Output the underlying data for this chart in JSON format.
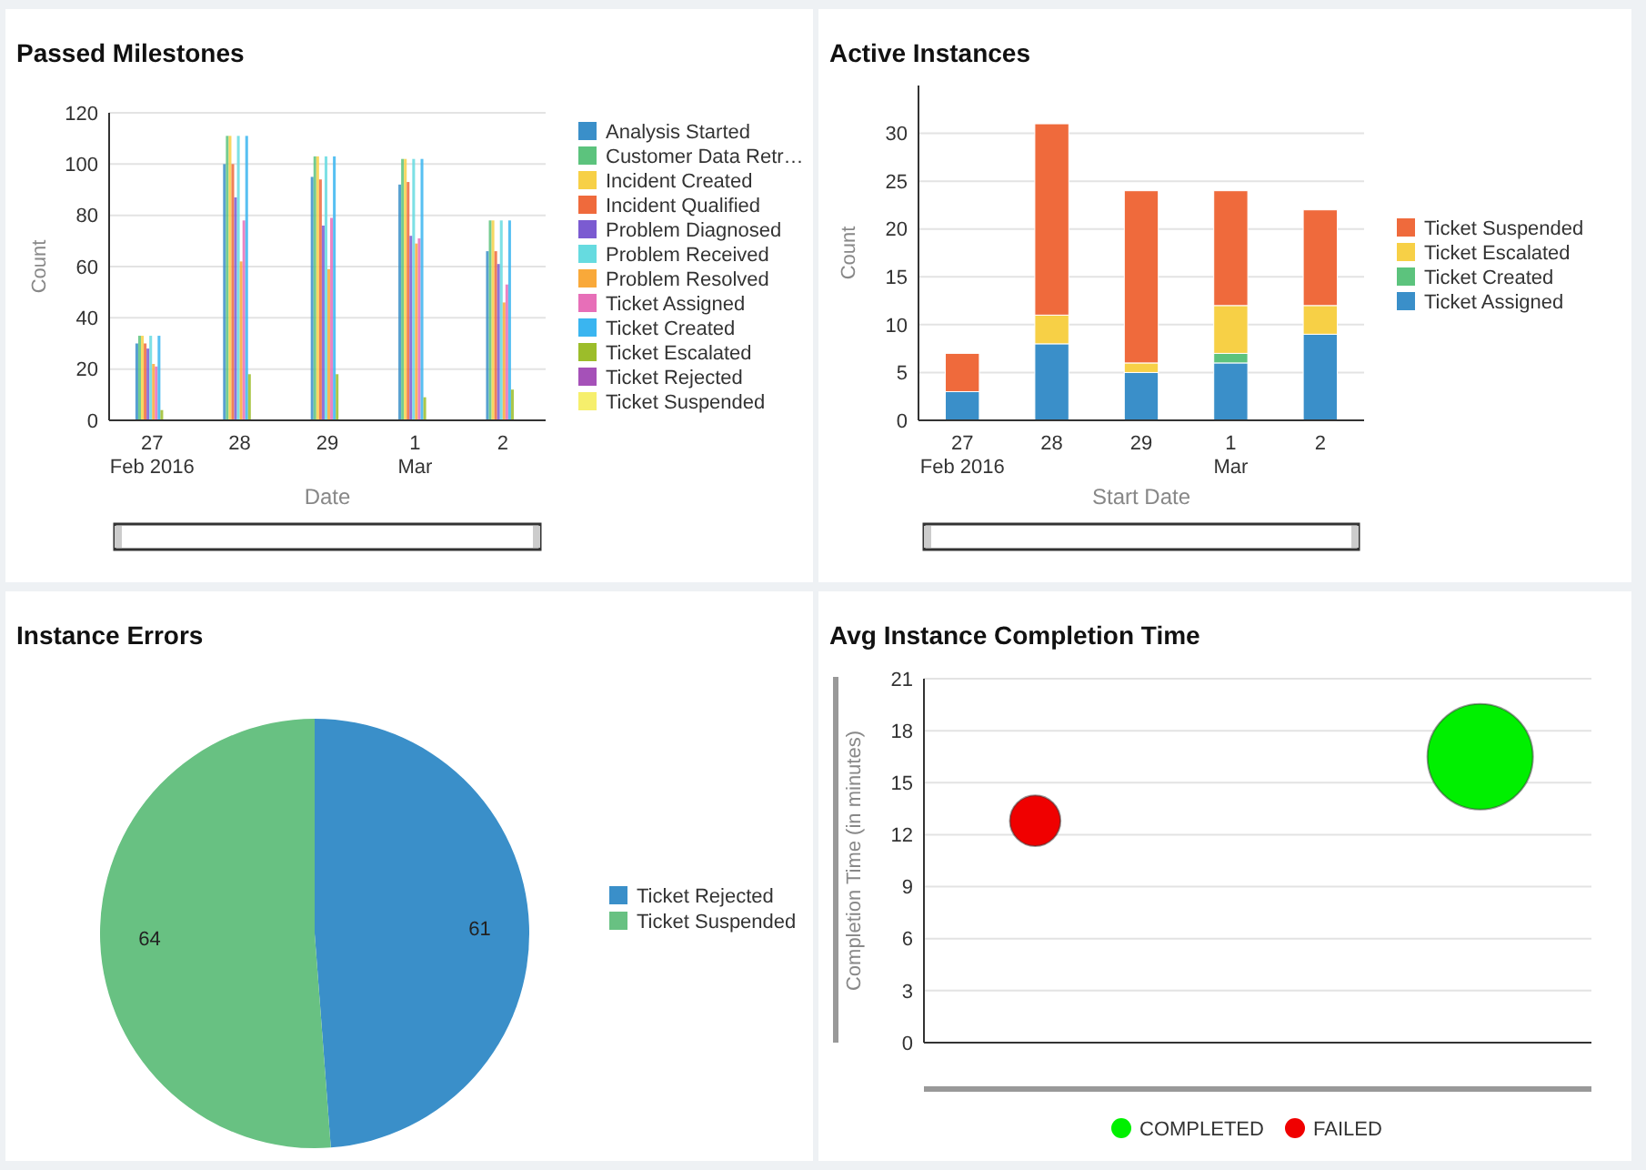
{
  "chart_data": [
    {
      "type": "bar",
      "title": "Passed Milestones",
      "xlabel": "Date",
      "ylabel": "Count",
      "categories": [
        "27\nFeb 2016",
        "28",
        "29",
        "1\nMar",
        "2"
      ],
      "series": [
        {
          "name": "Analysis Started",
          "color": "#3a8fc9",
          "values": [
            30,
            100,
            95,
            92,
            66
          ]
        },
        {
          "name": "Customer Data Retr…",
          "color": "#5cc37d",
          "values": [
            33,
            111,
            103,
            102,
            78
          ]
        },
        {
          "name": "Incident Created",
          "color": "#f7d046",
          "values": [
            33,
            111,
            103,
            102,
            78
          ]
        },
        {
          "name": "Incident Qualified",
          "color": "#ef6a3c",
          "values": [
            30,
            100,
            94,
            93,
            66
          ]
        },
        {
          "name": "Problem Diagnosed",
          "color": "#7b5bd1",
          "values": [
            28,
            87,
            76,
            72,
            61
          ]
        },
        {
          "name": "Problem Received",
          "color": "#66dbe0",
          "values": [
            33,
            111,
            103,
            102,
            78
          ]
        },
        {
          "name": "Problem Resolved",
          "color": "#f9a93a",
          "values": [
            22,
            62,
            59,
            69,
            46
          ]
        },
        {
          "name": "Ticket Assigned",
          "color": "#e76fb8",
          "values": [
            21,
            78,
            79,
            71,
            53
          ]
        },
        {
          "name": "Ticket Created",
          "color": "#3ab5f0",
          "values": [
            33,
            111,
            103,
            102,
            78
          ]
        },
        {
          "name": "Ticket Escalated",
          "color": "#9cbd2a",
          "values": [
            4,
            18,
            18,
            9,
            12
          ]
        },
        {
          "name": "Ticket Rejected",
          "color": "#a551b8",
          "values": [
            0,
            0,
            0,
            0,
            0
          ]
        },
        {
          "name": "Ticket Suspended",
          "color": "#f6ef6c",
          "values": [
            0,
            0,
            0,
            0,
            0
          ]
        }
      ],
      "ylim": [
        0,
        120
      ],
      "yticks": [
        0,
        20,
        40,
        60,
        80,
        100,
        120
      ],
      "grid": "y",
      "legend": "right"
    },
    {
      "type": "bar",
      "title": "Active Instances",
      "xlabel": "Start Date",
      "ylabel": "Count",
      "stacked": true,
      "categories": [
        "27\nFeb 2016",
        "28",
        "29",
        "1\nMar",
        "2"
      ],
      "series": [
        {
          "name": "Ticket Assigned",
          "color": "#3a8fc9",
          "values": [
            3,
            8,
            5,
            6,
            9
          ]
        },
        {
          "name": "Ticket Created",
          "color": "#5cc37d",
          "values": [
            0,
            0,
            0,
            1,
            0
          ]
        },
        {
          "name": "Ticket Escalated",
          "color": "#f7d046",
          "values": [
            0,
            3,
            1,
            5,
            3
          ]
        },
        {
          "name": "Ticket Suspended",
          "color": "#ef6a3c",
          "values": [
            4,
            20,
            18,
            12,
            10
          ]
        }
      ],
      "ylim": [
        0,
        35
      ],
      "yticks": [
        0,
        5,
        10,
        15,
        20,
        25,
        30
      ],
      "grid": "y",
      "legend": "right"
    },
    {
      "type": "pie",
      "title": "Instance Errors",
      "categories": [
        "Ticket Rejected",
        "Ticket Suspended"
      ],
      "values": [
        61,
        64
      ],
      "colors": [
        "#3a8fc9",
        "#68c182"
      ],
      "data_labels": true,
      "legend": "right"
    },
    {
      "type": "bubble",
      "title": "Avg Instance Completion Time",
      "ylabel": "Completion Time (in minutes)",
      "categories": [
        null,
        null,
        null
      ],
      "series": [
        {
          "name": "COMPLETED",
          "color": "#00f000",
          "values": [
            null,
            null,
            16.5
          ],
          "sizes": [
            null,
            null,
            1
          ]
        },
        {
          "name": "FAILED",
          "color": "#f00000",
          "values": [
            12.8,
            null,
            null
          ],
          "sizes": [
            0.23,
            null,
            null
          ]
        }
      ],
      "ylim": [
        0,
        21
      ],
      "yticks": [
        0,
        3,
        6,
        9,
        12,
        15,
        18,
        21
      ],
      "grid": "y",
      "legend": "bottom"
    }
  ]
}
